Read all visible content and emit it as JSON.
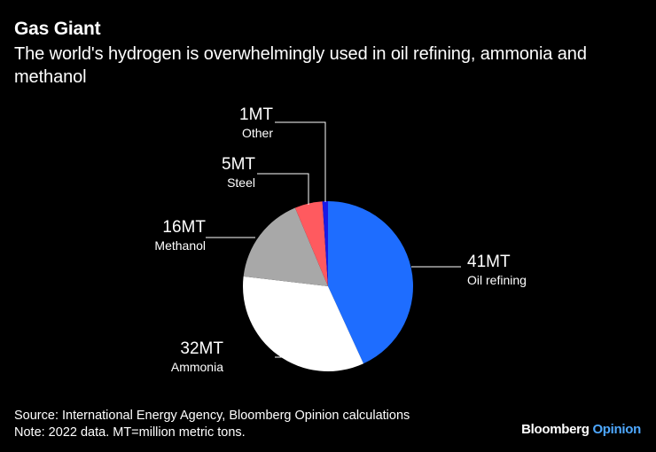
{
  "title": "Gas Giant",
  "subtitle": "The world's hydrogen is overwhelmingly used in oil refining, ammonia and methanol",
  "chart_data": {
    "type": "pie",
    "slices": [
      {
        "value_label": "41MT",
        "label": "Oil refining",
        "value": 41,
        "color": "#1e6dff"
      },
      {
        "value_label": "32MT",
        "label": "Ammonia",
        "value": 32,
        "color": "#ffffff"
      },
      {
        "value_label": "16MT",
        "label": "Methanol",
        "value": 16,
        "color": "#a8a8a8"
      },
      {
        "value_label": "5MT",
        "label": "Steel",
        "value": 5,
        "color": "#ff5a5f"
      },
      {
        "value_label": "1MT",
        "label": "Other",
        "value": 1,
        "color": "#1a1ae6"
      }
    ]
  },
  "footer": {
    "source": "Source: International Energy Agency, Bloomberg Opinion calculations",
    "note": "Note: 2022 data. MT=million metric tons."
  },
  "brand": {
    "name": "Bloomberg",
    "suffix": "Opinion"
  }
}
